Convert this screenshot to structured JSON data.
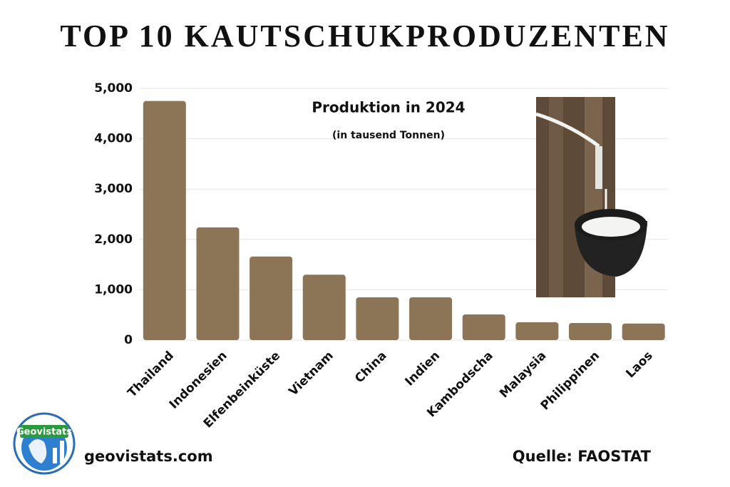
{
  "chart_data": {
    "type": "bar",
    "title": "TOP 10 KAUTSCHUKPRODUZENTEN",
    "subtitle": "Produktion in 2024",
    "note": "(in tausend Tonnen)",
    "categories": [
      "Thailand",
      "Indonesien",
      "Elfenbeinküste",
      "Vietnam",
      "China",
      "Indien",
      "Kambodscha",
      "Malaysia",
      "Philippinen",
      "Laos"
    ],
    "values": [
      4750,
      2240,
      1660,
      1300,
      850,
      850,
      510,
      355,
      340,
      330
    ],
    "color": "#8c7456",
    "ylim": [
      0,
      5000
    ],
    "yticks": [
      0,
      {
        "value": 1000,
        "label": "1,000"
      },
      {
        "value": 2000,
        "label": "2,000"
      },
      {
        "value": 3000,
        "label": "3,000"
      },
      {
        "value": 4000,
        "label": "4,000"
      },
      {
        "value": 5000,
        "label": "5,000"
      }
    ],
    "grid": true
  },
  "footer": {
    "logo": "Geovistats",
    "website": "geovistats.com",
    "source": "Quelle: FAOSTAT"
  }
}
